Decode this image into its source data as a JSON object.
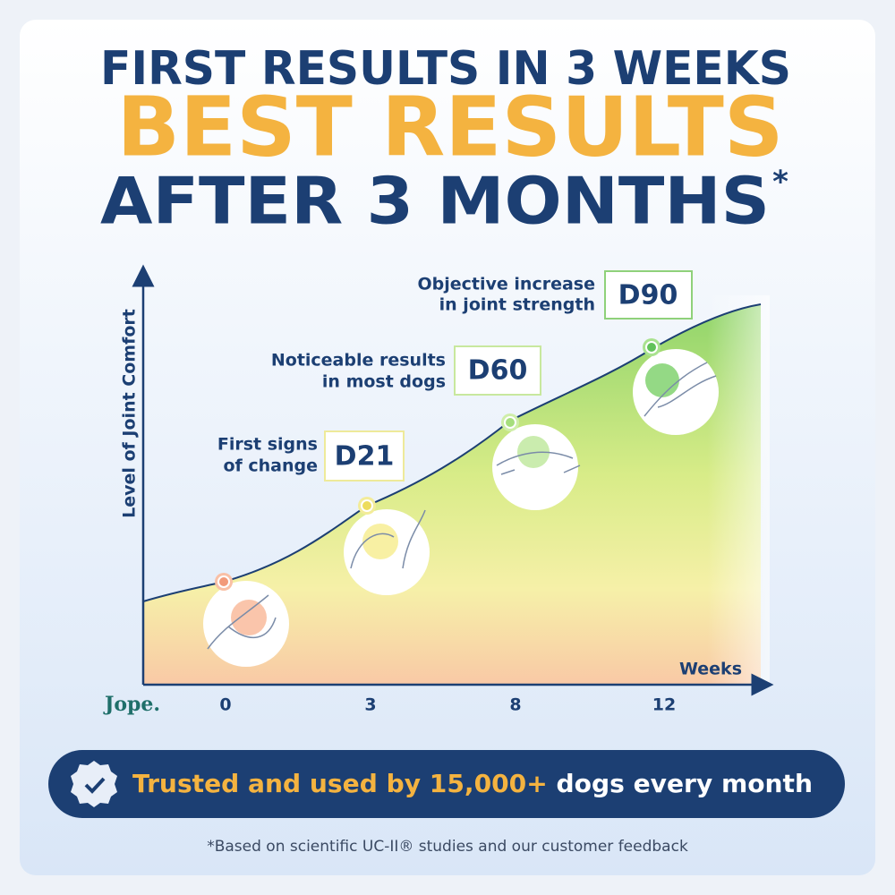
{
  "header": {
    "line1": "FIRST RESULTS IN 3 WEEKS",
    "line2": "BEST RESULTS",
    "line3": "AFTER 3 MONTHS",
    "asterisk": "*"
  },
  "y_axis_label": "Level of Joint Comfort",
  "x_axis_label": "Weeks",
  "x_ticks": [
    "0",
    "3",
    "8",
    "12"
  ],
  "brand": "Jope.",
  "milestones": [
    {
      "day": "D21",
      "text": [
        "First signs",
        "of change"
      ]
    },
    {
      "day": "D60",
      "text": [
        "Noticeable results",
        "in most dogs"
      ]
    },
    {
      "day": "D90",
      "text": [
        "Objective increase",
        "in joint strength"
      ]
    }
  ],
  "banner": {
    "highlight": "Trusted and used by 15,000+",
    "rest": " dogs every month"
  },
  "footnote": "*Based on scientific UC-II® studies and our customer feedback"
}
